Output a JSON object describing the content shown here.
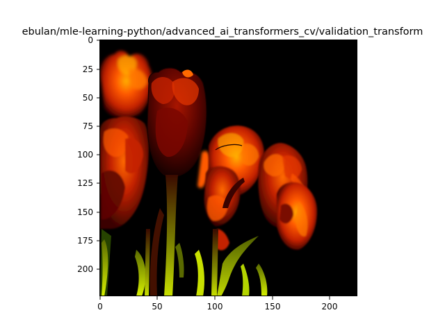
{
  "figure": {
    "title": "ebulan/mle-learning-python/advanced_ai_transformers_cv/validation_transform"
  },
  "axes": {
    "xlim": [
      0,
      224
    ],
    "ylim": [
      224,
      0
    ],
    "xticks": [
      0,
      50,
      100,
      150,
      200
    ],
    "yticks": [
      0,
      25,
      50,
      75,
      100,
      125,
      150,
      175,
      200
    ]
  },
  "image": {
    "subject": "red tulips on black background (false-color)",
    "colors": {
      "background": "#000000",
      "petal_dark": "#7a0700",
      "petal_mid": "#c42200",
      "petal_bright": "#ff5a00",
      "highlight": "#ffb000",
      "stem": "#9bb400",
      "leaf_bright": "#d6f000"
    }
  }
}
